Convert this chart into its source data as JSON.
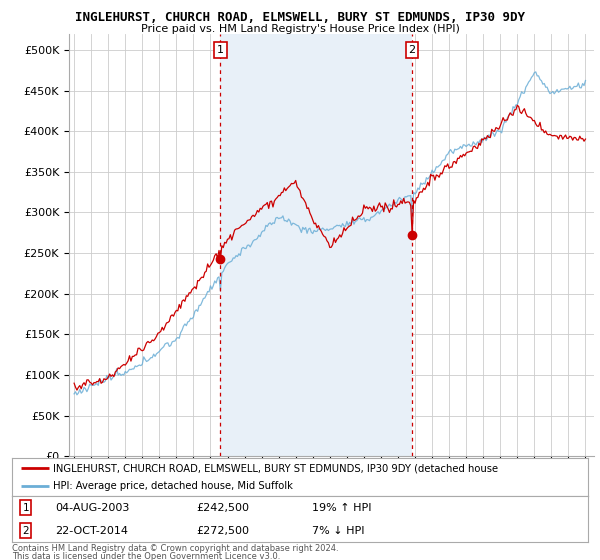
{
  "title": "INGLEHURST, CHURCH ROAD, ELMSWELL, BURY ST EDMUNDS, IP30 9DY",
  "subtitle": "Price paid vs. HM Land Registry's House Price Index (HPI)",
  "ylim": [
    0,
    520000
  ],
  "ytick_labels": [
    "£0",
    "£50K",
    "£100K",
    "£150K",
    "£200K",
    "£250K",
    "£300K",
    "£350K",
    "£400K",
    "£450K",
    "£500K"
  ],
  "ytick_vals": [
    0,
    50000,
    100000,
    150000,
    200000,
    250000,
    300000,
    350000,
    400000,
    450000,
    500000
  ],
  "xlim_start": 1994.7,
  "xlim_end": 2025.5,
  "sale1_x": 2003.58,
  "sale1_y": 242500,
  "sale2_x": 2014.82,
  "sale2_y": 272500,
  "sale1_date": "04-AUG-2003",
  "sale1_price": "£242,500",
  "sale1_hpi": "19% ↑ HPI",
  "sale2_date": "22-OCT-2014",
  "sale2_price": "£272,500",
  "sale2_hpi": "7% ↓ HPI",
  "legend_line1": "INGLEHURST, CHURCH ROAD, ELMSWELL, BURY ST EDMUNDS, IP30 9DY (detached house",
  "legend_line2": "HPI: Average price, detached house, Mid Suffolk",
  "footer1": "Contains HM Land Registry data © Crown copyright and database right 2024.",
  "footer2": "This data is licensed under the Open Government Licence v3.0.",
  "sale_color": "#cc0000",
  "hpi_color": "#6baed6",
  "hpi_fill_color": "#ddeeff",
  "background_color": "#ffffff",
  "grid_color": "#cccccc",
  "shade_color": "#e8f0f8"
}
